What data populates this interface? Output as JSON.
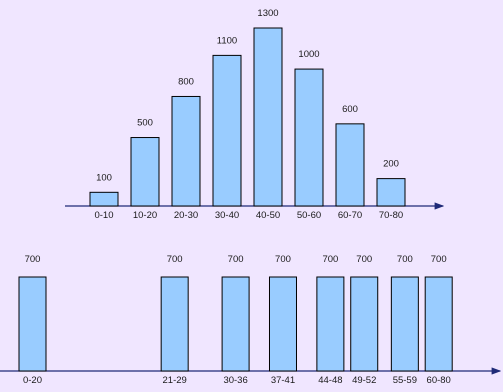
{
  "chart_data": [
    {
      "type": "bar",
      "categories": [
        "0-10",
        "10-20",
        "20-30",
        "30-40",
        "40-50",
        "50-60",
        "60-70",
        "70-80"
      ],
      "values": [
        100,
        500,
        800,
        1100,
        1300,
        1000,
        600,
        200
      ],
      "data_labels": [
        "100",
        "500",
        "800",
        "1100",
        "1300",
        "1000",
        "600",
        "200"
      ],
      "ylim": [
        0,
        1300
      ],
      "title": "",
      "xlabel": "",
      "ylabel": "",
      "grid": false,
      "bar_color": "#99ccff",
      "axis_color": "#1f2a78"
    },
    {
      "type": "bar",
      "categories": [
        "0-20",
        "21-29",
        "30-36",
        "37-41",
        "44-48",
        "49-52",
        "55-59",
        "60-80"
      ],
      "values": [
        700,
        700,
        700,
        700,
        700,
        700,
        700,
        700
      ],
      "data_labels": [
        "700",
        "700",
        "700",
        "700",
        "700",
        "700",
        "700",
        "700"
      ],
      "x_ranges": [
        [
          0,
          20
        ],
        [
          21,
          29
        ],
        [
          30,
          36
        ],
        [
          37,
          41
        ],
        [
          44,
          48
        ],
        [
          49,
          52
        ],
        [
          55,
          59
        ],
        [
          60,
          80
        ]
      ],
      "ylim": [
        0,
        700
      ],
      "title": "",
      "xlabel": "",
      "ylabel": "",
      "grid": false,
      "bar_color": "#99ccff",
      "axis_color": "#1f2a78"
    }
  ]
}
